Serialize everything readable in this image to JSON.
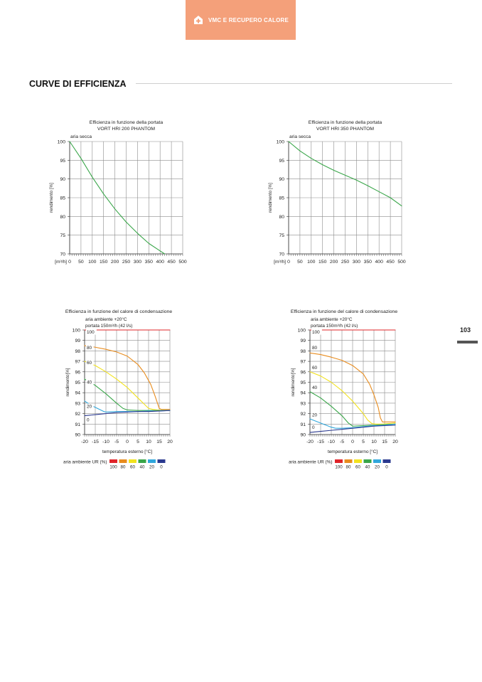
{
  "header": {
    "tab_label": "VMC E RECUPERO CALORE",
    "icon": "house-plus-icon",
    "color": "#f4a07a"
  },
  "section": {
    "title": "CURVE DI EFFICIENZA"
  },
  "page": {
    "number": "103"
  },
  "chart_data": [
    {
      "type": "line",
      "title": "Efficienza in funzione della portata",
      "subtitle": "VORT HRI 200 PHANTOM",
      "annotation": "aria secca",
      "ylabel": "rendimento [%]",
      "xlabel": "[m³/h]",
      "xlim": [
        0,
        500
      ],
      "ylim": [
        70,
        100
      ],
      "xticks": [
        "0",
        "50",
        "100",
        "150",
        "200",
        "250",
        "300",
        "350",
        "400",
        "450",
        "500"
      ],
      "yticks": [
        "70",
        "75",
        "80",
        "85",
        "90",
        "95",
        "100"
      ],
      "grid": true,
      "series": [
        {
          "color": "#3aa64a",
          "x": [
            0,
            50,
            100,
            150,
            200,
            250,
            300,
            350,
            400,
            420
          ],
          "y": [
            100,
            95.5,
            90.5,
            86,
            82,
            78.5,
            75.5,
            72.8,
            70.8,
            70
          ]
        }
      ]
    },
    {
      "type": "line",
      "title": "Efficienza in funzione della portata",
      "subtitle": "VORT HRI 350 PHANTOM",
      "annotation": "aria secca",
      "ylabel": "rendimento [%]",
      "xlabel": "[m³/h]",
      "xlim": [
        0,
        500
      ],
      "ylim": [
        70,
        100
      ],
      "xticks": [
        "0",
        "50",
        "100",
        "150",
        "200",
        "250",
        "300",
        "350",
        "400",
        "450",
        "500"
      ],
      "yticks": [
        "70",
        "75",
        "80",
        "85",
        "90",
        "95",
        "100"
      ],
      "grid": true,
      "series": [
        {
          "color": "#3aa64a",
          "x": [
            0,
            50,
            100,
            150,
            200,
            250,
            300,
            350,
            400,
            450,
            500
          ],
          "y": [
            100,
            97.5,
            95.5,
            93.8,
            92.3,
            91,
            89.7,
            88.2,
            86.6,
            85,
            82.8
          ]
        }
      ]
    },
    {
      "type": "line",
      "title": "Efficienza in funzione del calore di condensazione",
      "subtitle": "aria ambiente +20°C",
      "subtitle2": "portata 150m³/h (42 l/s)",
      "ylabel": "rendimento[%]",
      "xlabel": "temperatura esterno [°C]",
      "xlim": [
        -20,
        20
      ],
      "ylim": [
        90,
        100
      ],
      "xticks": [
        "-20",
        "-15",
        "-10",
        "-5",
        "0",
        "5",
        "10",
        "15",
        "20"
      ],
      "yticks": [
        "90",
        "91",
        "92",
        "93",
        "94",
        "95",
        "96",
        "97",
        "98",
        "99",
        "100"
      ],
      "grid": true,
      "legend": {
        "label": "aria ambiente UR (%)",
        "placement": "bottom",
        "entries": [
          "100",
          "80",
          "60",
          "40",
          "20",
          "0"
        ],
        "colors": [
          "#e0242a",
          "#e88c1e",
          "#f2e21f",
          "#3aa64a",
          "#31a7dc",
          "#2b3a8f"
        ]
      },
      "series": [
        {
          "name": "100",
          "color": "#e0242a",
          "inline_label": "100",
          "label_at": [
            -19,
            99.65
          ],
          "x": [
            -20,
            20
          ],
          "y": [
            100,
            100
          ]
        },
        {
          "name": "80",
          "color": "#e88c1e",
          "inline_label": "80",
          "label_at": [
            -19,
            98.15
          ],
          "x": [
            -20,
            -15,
            -10,
            -5,
            0,
            5,
            8,
            11,
            13,
            15,
            16,
            20
          ],
          "y": [
            98.5,
            98.35,
            98.15,
            97.9,
            97.5,
            96.7,
            95.9,
            94.8,
            93.7,
            92.5,
            92.4,
            92.4
          ]
        },
        {
          "name": "60",
          "color": "#f2e21f",
          "inline_label": "60",
          "label_at": [
            -19,
            96.75
          ],
          "x": [
            -20,
            -15,
            -10,
            -5,
            0,
            5,
            8,
            10,
            12,
            14,
            16,
            20
          ],
          "y": [
            97,
            96.6,
            96,
            95.3,
            94.5,
            93.5,
            92.9,
            92.5,
            92.4,
            92.35,
            92.3,
            92.3
          ]
        },
        {
          "name": "40",
          "color": "#3aa64a",
          "inline_label": "40",
          "label_at": [
            -19,
            94.85
          ],
          "x": [
            -20,
            -15,
            -10,
            -5,
            -2,
            0,
            5,
            10,
            15,
            20
          ],
          "y": [
            95.3,
            94.7,
            93.9,
            93,
            92.5,
            92.35,
            92.3,
            92.3,
            92.3,
            92.3
          ]
        },
        {
          "name": "20",
          "color": "#31a7dc",
          "inline_label": "20",
          "label_at": [
            -19,
            92.55
          ],
          "x": [
            -20,
            -17,
            -14,
            -11,
            -10,
            -5,
            0,
            5,
            10,
            15,
            20
          ],
          "y": [
            93.2,
            92.8,
            92.5,
            92.2,
            92.15,
            92.2,
            92.2,
            92.2,
            92.25,
            92.25,
            92.3
          ]
        },
        {
          "name": "0",
          "color": "#2b3a8f",
          "inline_label": "0",
          "label_at": [
            -19,
            91.25
          ],
          "x": [
            -20,
            -15,
            -10,
            -5,
            0,
            5,
            10,
            15,
            20
          ],
          "y": [
            91.8,
            91.9,
            92.0,
            92.1,
            92.15,
            92.2,
            92.2,
            92.25,
            92.3
          ]
        }
      ]
    },
    {
      "type": "line",
      "title": "Efficienza in funzione del calore di condensazione",
      "subtitle": "aria ambiente +20°C",
      "subtitle2": "portata 150m³/h (42 l/s)",
      "ylabel": "rendimento[%]",
      "xlabel": "temperatura esterno [°C]",
      "xlim": [
        -20,
        20
      ],
      "ylim": [
        90,
        100
      ],
      "xticks": [
        "-20",
        "-15",
        "-10",
        "-5",
        "0",
        "5",
        "10",
        "15",
        "20"
      ],
      "yticks": [
        "90",
        "91",
        "92",
        "93",
        "94",
        "95",
        "96",
        "97",
        "98",
        "99",
        "100"
      ],
      "grid": true,
      "legend": {
        "label": "aria ambiente UR (%)",
        "placement": "bottom",
        "entries": [
          "100",
          "80",
          "60",
          "40",
          "20",
          "0"
        ],
        "colors": [
          "#e0242a",
          "#e88c1e",
          "#f2e21f",
          "#3aa64a",
          "#31a7dc",
          "#2b3a8f"
        ]
      },
      "series": [
        {
          "name": "100",
          "color": "#e0242a",
          "inline_label": "100",
          "label_at": [
            -19,
            99.65
          ],
          "x": [
            -20,
            20
          ],
          "y": [
            100,
            100
          ]
        },
        {
          "name": "80",
          "color": "#e88c1e",
          "inline_label": "80",
          "label_at": [
            -19,
            98.15
          ],
          "x": [
            -20,
            -15,
            -10,
            -5,
            0,
            5,
            8,
            10,
            12,
            13,
            14,
            16,
            20
          ],
          "y": [
            97.8,
            97.65,
            97.4,
            97.1,
            96.6,
            95.8,
            94.8,
            93.8,
            92.6,
            91.6,
            91.2,
            91.2,
            91.2
          ]
        },
        {
          "name": "60",
          "color": "#f2e21f",
          "inline_label": "60",
          "label_at": [
            -19,
            96.25
          ],
          "x": [
            -20,
            -15,
            -10,
            -5,
            0,
            5,
            7,
            9,
            11,
            14,
            20
          ],
          "y": [
            96,
            95.6,
            95,
            94.2,
            93.2,
            92,
            91.4,
            91.05,
            91,
            91,
            91.1
          ]
        },
        {
          "name": "40",
          "color": "#3aa64a",
          "inline_label": "40",
          "label_at": [
            -19,
            94.35
          ],
          "x": [
            -20,
            -15,
            -10,
            -5,
            -2,
            0,
            5,
            10,
            15,
            20
          ],
          "y": [
            94.1,
            93.5,
            92.7,
            91.8,
            91.1,
            90.8,
            90.85,
            90.9,
            90.95,
            91
          ]
        },
        {
          "name": "20",
          "color": "#31a7dc",
          "inline_label": "20",
          "label_at": [
            -19,
            91.75
          ],
          "x": [
            -20,
            -15,
            -10,
            -8,
            -5,
            0,
            5,
            10,
            15,
            20
          ],
          "y": [
            91.5,
            91.1,
            90.7,
            90.6,
            90.6,
            90.65,
            90.75,
            90.85,
            90.9,
            91
          ]
        },
        {
          "name": "0",
          "color": "#2b3a8f",
          "inline_label": "0",
          "label_at": [
            -19,
            90.55
          ],
          "x": [
            -20,
            -15,
            -10,
            -5,
            0,
            5,
            10,
            15,
            20
          ],
          "y": [
            90.2,
            90.3,
            90.4,
            90.5,
            90.6,
            90.7,
            90.8,
            90.85,
            90.9
          ]
        }
      ]
    }
  ]
}
